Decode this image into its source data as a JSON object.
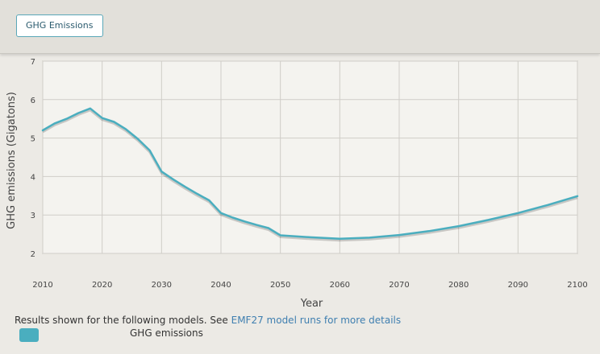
{
  "toolbar": {
    "tab_label": "GHG Emissions"
  },
  "chart_data": {
    "type": "line",
    "title": "",
    "xlabel": "Year",
    "ylabel": "GHG emissions (Gigatons)",
    "xlim": [
      2010,
      2100
    ],
    "ylim": [
      2,
      7
    ],
    "xticks": [
      2010,
      2020,
      2030,
      2040,
      2050,
      2060,
      2070,
      2080,
      2090,
      2100
    ],
    "yticks": [
      2,
      3,
      4,
      5,
      6,
      7
    ],
    "grid": true,
    "series": [
      {
        "name": "GHG emissions",
        "color": "#4aaebf",
        "x": [
          2010,
          2012,
          2014,
          2016,
          2018,
          2020,
          2022,
          2024,
          2026,
          2028,
          2030,
          2032,
          2034,
          2036,
          2038,
          2040,
          2042,
          2044,
          2046,
          2048,
          2050,
          2055,
          2060,
          2065,
          2070,
          2075,
          2080,
          2085,
          2090,
          2095,
          2100
        ],
        "y": [
          5.2,
          5.38,
          5.5,
          5.65,
          5.77,
          5.52,
          5.42,
          5.23,
          4.98,
          4.68,
          4.13,
          3.92,
          3.73,
          3.55,
          3.38,
          3.05,
          2.93,
          2.83,
          2.74,
          2.66,
          2.47,
          2.42,
          2.38,
          2.41,
          2.48,
          2.58,
          2.71,
          2.87,
          3.05,
          3.26,
          3.49
        ]
      }
    ]
  },
  "footer": {
    "results_text": "Results shown for the following models. See ",
    "link_text": "EMF27 model runs for more details"
  },
  "legend": {
    "swatch_color": "#4aaebf",
    "label": "GHG emissions"
  }
}
